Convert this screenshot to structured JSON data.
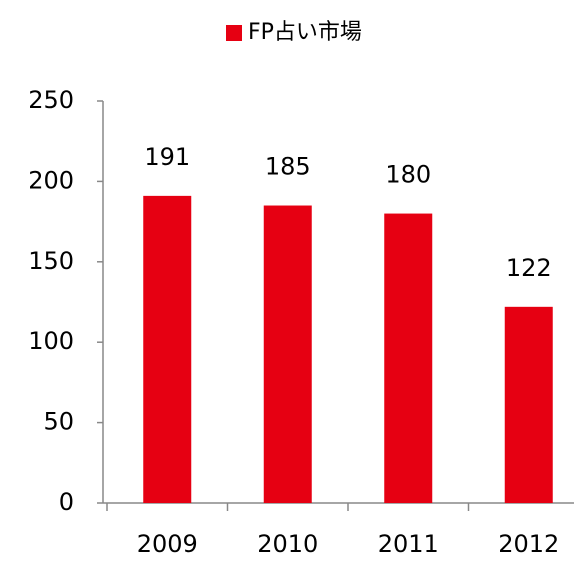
{
  "chart_data": {
    "type": "bar",
    "categories": [
      "2009",
      "2010",
      "2011",
      "2012"
    ],
    "series": [
      {
        "name": "FP占い市場",
        "color": "#e60012",
        "values": [
          191,
          185,
          180,
          122
        ]
      }
    ],
    "ylim": [
      0,
      250
    ],
    "yticks": [
      0,
      50,
      100,
      150,
      200,
      250
    ],
    "legend": "top"
  }
}
